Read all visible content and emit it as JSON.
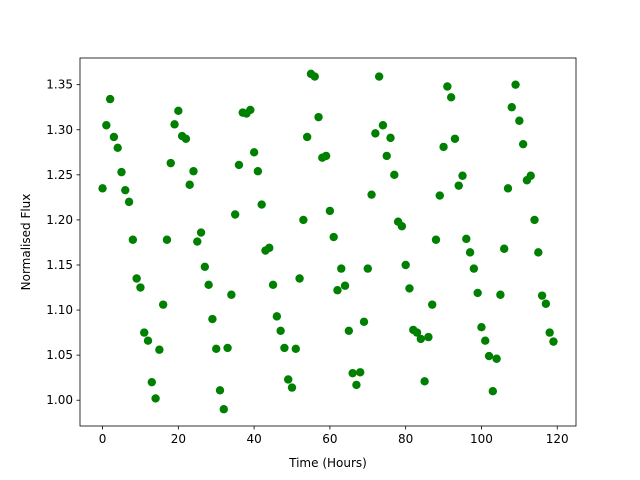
{
  "chart_data": {
    "type": "scatter",
    "xlabel": "Time (Hours)",
    "ylabel": "Normalised Flux",
    "color": "#008000",
    "x": [
      0,
      1,
      2,
      3,
      4,
      5,
      6,
      7,
      8,
      9,
      10,
      11,
      12,
      13,
      14,
      15,
      16,
      17,
      18,
      19,
      20,
      21,
      22,
      23,
      24,
      25,
      26,
      27,
      28,
      29,
      30,
      31,
      32,
      33,
      34,
      35,
      36,
      37,
      38,
      39,
      40,
      41,
      42,
      43,
      44,
      45,
      46,
      47,
      48,
      49,
      50,
      51,
      52,
      53,
      54,
      55,
      56,
      57,
      58,
      59,
      60,
      61,
      62,
      63,
      64,
      65,
      66,
      67,
      68,
      69,
      70,
      71,
      72,
      73,
      74,
      75,
      76,
      77,
      78,
      79,
      80,
      81,
      82,
      83,
      84,
      85,
      86,
      87,
      88,
      89,
      90,
      91,
      92,
      93,
      94,
      95,
      96,
      97,
      98,
      99,
      100,
      101,
      102,
      103,
      104,
      105,
      106,
      107,
      108,
      109,
      110,
      111,
      112,
      113,
      114,
      115,
      116,
      117,
      118,
      119
    ],
    "values": [
      1.235,
      1.305,
      1.334,
      1.292,
      1.28,
      1.253,
      1.233,
      1.22,
      1.178,
      1.135,
      1.125,
      1.075,
      1.066,
      1.02,
      1.002,
      1.056,
      1.106,
      1.178,
      1.263,
      1.306,
      1.321,
      1.293,
      1.29,
      1.239,
      1.254,
      1.176,
      1.186,
      1.148,
      1.128,
      1.09,
      1.057,
      1.011,
      0.99,
      1.058,
      1.117,
      1.206,
      1.261,
      1.319,
      1.318,
      1.322,
      1.275,
      1.254,
      1.217,
      1.166,
      1.169,
      1.128,
      1.093,
      1.077,
      1.058,
      1.023,
      1.014,
      1.057,
      1.135,
      1.2,
      1.292,
      1.362,
      1.359,
      1.314,
      1.269,
      1.271,
      1.21,
      1.181,
      1.122,
      1.146,
      1.127,
      1.077,
      1.03,
      1.017,
      1.031,
      1.087,
      1.146,
      1.228,
      1.296,
      1.359,
      1.305,
      1.271,
      1.291,
      1.25,
      1.198,
      1.193,
      1.15,
      1.124,
      1.078,
      1.075,
      1.068,
      1.021,
      1.07,
      1.106,
      1.178,
      1.227,
      1.281,
      1.348,
      1.336,
      1.29,
      1.238,
      1.249,
      1.179,
      1.164,
      1.146,
      1.119,
      1.081,
      1.066,
      1.049,
      1.01,
      1.046,
      1.117,
      1.168,
      1.235,
      1.325,
      1.35,
      1.31,
      1.284,
      1.244,
      1.249,
      1.2,
      1.164,
      1.116,
      1.107,
      1.075,
      1.065
    ],
    "xlim": [
      -5.95,
      124.95
    ],
    "ylim": [
      0.9714,
      1.3796
    ],
    "xticks": [
      0,
      20,
      40,
      60,
      80,
      100,
      120
    ],
    "yticks": [
      {
        "value": 1.0,
        "label": "1.00"
      },
      {
        "value": 1.05,
        "label": "1.05"
      },
      {
        "value": 1.1,
        "label": "1.10"
      },
      {
        "value": 1.15,
        "label": "1.15"
      },
      {
        "value": 1.2,
        "label": "1.20"
      },
      {
        "value": 1.25,
        "label": "1.25"
      },
      {
        "value": 1.3,
        "label": "1.30"
      },
      {
        "value": 1.35,
        "label": "1.35"
      }
    ]
  }
}
